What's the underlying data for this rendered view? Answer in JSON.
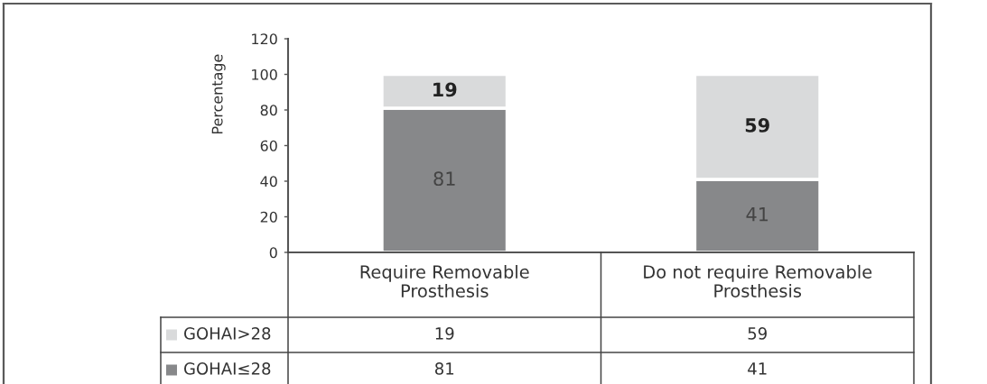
{
  "chart_data": {
    "type": "bar",
    "stacked": true,
    "ylabel": "Percentage",
    "categories": [
      "Require Removable\nProsthesis",
      "Do not require Removable\nProsthesis"
    ],
    "series": [
      {
        "name": "GOHAI≤28",
        "color": "#87888a",
        "values": [
          81,
          41
        ]
      },
      {
        "name": "GOHAI>28",
        "color": "#d9dadb",
        "values": [
          19,
          59
        ]
      }
    ],
    "ylim": [
      0,
      120
    ],
    "yticks": [
      0,
      20,
      40,
      60,
      80,
      100,
      120
    ],
    "data_labels": true,
    "legend": "bottom left",
    "annotations": [
      "81",
      "41",
      "19",
      "59"
    ]
  }
}
